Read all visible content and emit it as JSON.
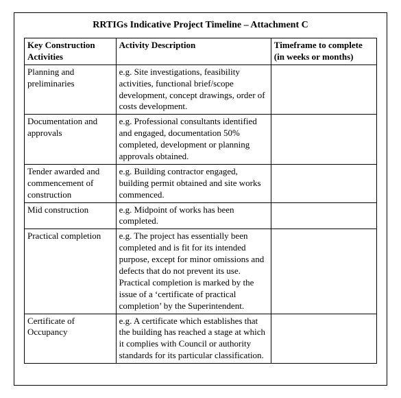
{
  "title": "RRTIGs Indicative Project Timeline – Attachment C",
  "table": {
    "columns": [
      "Key Construction Activities",
      "Activity Description",
      "Timeframe to complete (in weeks or months)"
    ],
    "rows": [
      {
        "activity": "Planning and preliminaries",
        "description": "e.g. Site investigations, feasibility activities, functional brief/scope development, concept drawings, order of costs development.",
        "timeframe": ""
      },
      {
        "activity": "Documentation and approvals",
        "description": "e.g. Professional consultants identified and engaged, documentation 50% completed, development or planning approvals obtained.",
        "timeframe": ""
      },
      {
        "activity": "Tender awarded and commencement of construction",
        "description": "e.g. Building contractor engaged, building permit obtained and site works commenced.",
        "timeframe": ""
      },
      {
        "activity": "Mid construction",
        "description": "e.g. Midpoint of works has been completed.",
        "timeframe": ""
      },
      {
        "activity": "Practical completion",
        "description": "e.g. The project has essentially been completed and is fit for its intended purpose, except for minor omissions and defects that do not prevent its use. Practical completion is marked by the issue of a ‘certificate of practical completion’ by the Superintendent.",
        "timeframe": ""
      },
      {
        "activity": "Certificate of Occupancy",
        "description": "e.g. A certificate which establishes that the building has reached a stage at which it complies with Council or authority standards for its particular classification.",
        "timeframe": ""
      }
    ],
    "styling": {
      "border_color": "#000000",
      "background_color": "#ffffff",
      "font_family": "Times New Roman",
      "title_fontsize": 14,
      "body_fontsize": 13,
      "column_widths_pct": [
        26,
        44,
        30
      ]
    }
  }
}
